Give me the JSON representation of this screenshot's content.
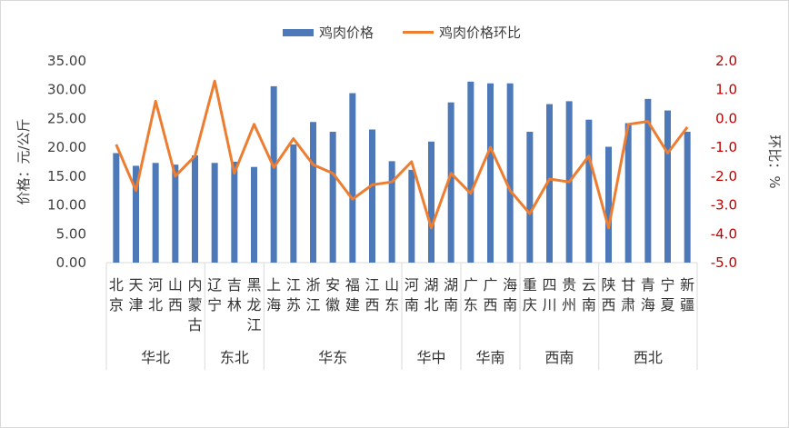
{
  "colors": {
    "bar": "#4E79B9",
    "line": "#ED7D31",
    "axis_left": "#404040",
    "axis_right": "#C00000",
    "grid": "#D9D9D9"
  },
  "legend": {
    "bar_label": "鸡肉价格",
    "line_label": "鸡肉价格环比"
  },
  "chart_data": {
    "type": "bar",
    "combo": "bar + line (secondary axis)",
    "categories": [
      "北京",
      "天津",
      "河北",
      "山西",
      "内蒙古",
      "辽宁",
      "吉林",
      "黑龙江",
      "上海",
      "江苏",
      "浙江",
      "安徽",
      "福建",
      "江西",
      "山东",
      "河南",
      "湖北",
      "湖南",
      "广东",
      "广西",
      "海南",
      "重庆",
      "四川",
      "贵州",
      "云南",
      "陕西",
      "甘肃",
      "青海",
      "宁夏",
      "新疆"
    ],
    "groups": [
      {
        "name": "华北",
        "count": 5
      },
      {
        "name": "东北",
        "count": 3
      },
      {
        "name": "华东",
        "count": 7
      },
      {
        "name": "华中",
        "count": 3
      },
      {
        "name": "华南",
        "count": 3
      },
      {
        "name": "西南",
        "count": 4
      },
      {
        "name": "西北",
        "count": 5
      }
    ],
    "series": [
      {
        "name": "鸡肉价格",
        "type": "bar",
        "axis": "left",
        "values": [
          19.0,
          16.8,
          17.3,
          17.0,
          18.6,
          17.3,
          17.5,
          16.6,
          30.6,
          20.5,
          24.4,
          22.7,
          29.4,
          23.1,
          17.6,
          16.1,
          21.0,
          27.8,
          31.4,
          31.1,
          31.1,
          22.7,
          27.5,
          28.0,
          24.8,
          20.1,
          24.2,
          28.4,
          26.4,
          22.7
        ]
      },
      {
        "name": "鸡肉价格环比",
        "type": "line",
        "axis": "right",
        "values": [
          -0.9,
          -2.5,
          0.6,
          -2.0,
          -1.3,
          1.3,
          -1.9,
          -0.2,
          -1.7,
          -0.7,
          -1.6,
          -1.9,
          -2.8,
          -2.3,
          -2.2,
          -1.5,
          -3.8,
          -1.9,
          -2.6,
          -1.0,
          -2.5,
          -3.3,
          -2.1,
          -2.2,
          -1.3,
          -3.8,
          -0.2,
          -0.1,
          -1.2,
          -0.3
        ]
      }
    ],
    "ylabel": "价格：元/公斤",
    "y2label": "环比：%",
    "ylim": [
      0,
      35
    ],
    "y2lim": [
      -5,
      2
    ],
    "yticks": [
      "0.00",
      "5.00",
      "10.00",
      "15.00",
      "20.00",
      "25.00",
      "30.00",
      "35.00"
    ],
    "y2ticks": [
      "-5.0",
      "-4.0",
      "-3.0",
      "-2.0",
      "-1.0",
      "0.0",
      "1.0",
      "2.0"
    ],
    "legend_position": "top",
    "grid": false
  }
}
